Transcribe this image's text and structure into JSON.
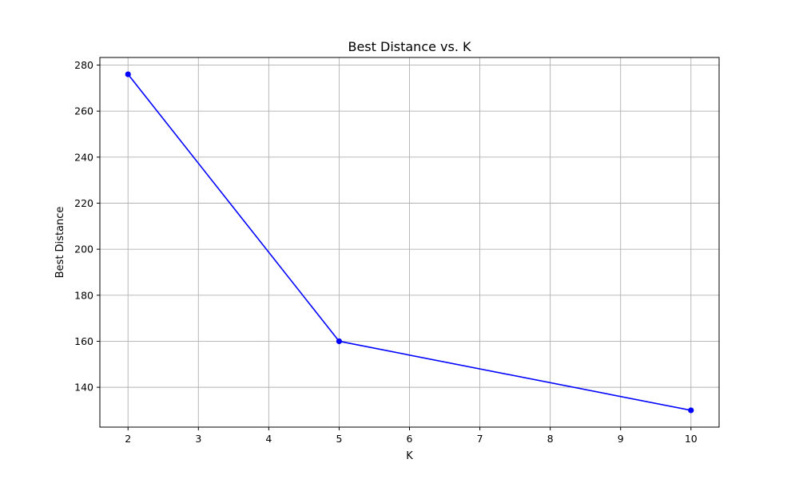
{
  "chart_data": {
    "type": "line",
    "title": "Best Distance vs. K",
    "xlabel": "K",
    "ylabel": "Best Distance",
    "x": [
      2,
      5,
      10
    ],
    "series": [
      {
        "values": [
          276,
          160,
          130
        ],
        "color": "#0000ff",
        "marker": "circle"
      }
    ],
    "xlim": [
      1.6,
      10.4
    ],
    "ylim": [
      122.7,
      283.3
    ],
    "xticks": [
      2,
      3,
      4,
      5,
      6,
      7,
      8,
      9,
      10
    ],
    "yticks": [
      140,
      160,
      180,
      200,
      220,
      240,
      260,
      280
    ],
    "grid": true,
    "grid_color": "#b0b0b0",
    "axis_color": "#000000"
  }
}
